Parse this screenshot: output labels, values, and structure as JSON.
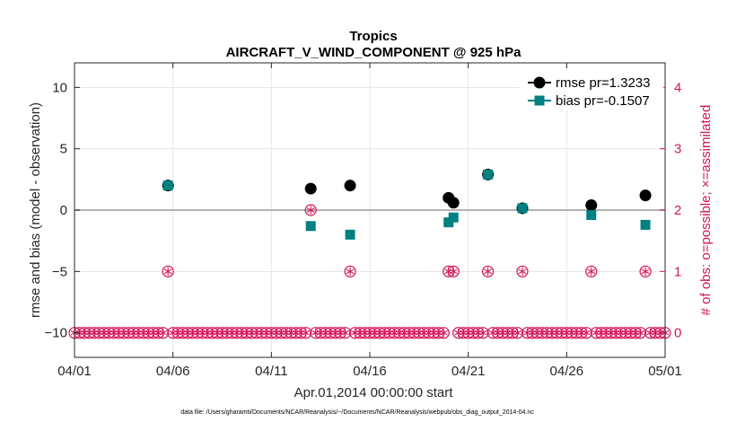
{
  "chart_data": {
    "type": "scatter",
    "title": "Tropics",
    "subtitle": "AIRCRAFT_V_WIND_COMPONENT @ 925 hPa",
    "xlabel": "Apr.01,2014 00:00:00 start",
    "ylabel": "rmse and bias (model - observation)",
    "ylabel_right": "# of obs: o=possible; ×=assimilated",
    "footnote": "data file: /Users/gharamti/Documents/NCAR/Reanalysis/~/Documents/NCAR/Reanalysis/webpub/obs_diag_output_2014-04.nc",
    "xlim": [
      0,
      30
    ],
    "ylim": [
      -12,
      12
    ],
    "ylim_right": [
      -0.4,
      4.4
    ],
    "x_ticks": [
      0,
      5,
      10,
      15,
      20,
      25,
      30
    ],
    "x_tick_labels": [
      "04/01",
      "04/06",
      "04/11",
      "04/16",
      "04/21",
      "04/26",
      "05/01"
    ],
    "y_ticks": [
      -10,
      -5,
      0,
      5,
      10
    ],
    "y_tick_labels": [
      "−10",
      "−5",
      "0",
      "5",
      "10"
    ],
    "y_ticks_right": [
      0,
      1,
      2,
      3,
      4
    ],
    "y_tick_labels_right": [
      "0",
      "1",
      "2",
      "3",
      "4"
    ],
    "grid": true,
    "legend_position": "top-right",
    "colors": {
      "rmse": "#000000",
      "bias": "#008080",
      "obs": "#d4145a",
      "zero_line": "#b3b3b3"
    },
    "series": [
      {
        "name": "rmse pr=1.3233",
        "marker": "circle",
        "x": [
          4.75,
          12.0,
          14.0,
          19.0,
          19.25,
          21.0,
          22.75,
          26.25,
          29.0
        ],
        "values": [
          2.0,
          1.75,
          2.0,
          1.0,
          0.6,
          2.9,
          0.15,
          0.4,
          1.2
        ]
      },
      {
        "name": "bias pr=-0.1507",
        "marker": "square",
        "x": [
          4.75,
          12.0,
          14.0,
          19.0,
          19.25,
          21.0,
          22.75,
          26.25,
          29.0
        ],
        "values": [
          2.0,
          -1.3,
          -2.0,
          -1.0,
          -0.6,
          2.9,
          0.15,
          -0.4,
          -1.2
        ]
      },
      {
        "name": "obs possible",
        "axis": "right",
        "marker": "circle-open",
        "x": [
          4.75,
          12.0,
          14.0,
          19.0,
          19.25,
          21.0,
          22.75,
          26.25,
          29.0
        ],
        "values": [
          1,
          2,
          1,
          1,
          1,
          1,
          1,
          1,
          1
        ],
        "baseline_value": 0,
        "baseline_step": 0.25
      },
      {
        "name": "obs assimilated",
        "axis": "right",
        "marker": "star",
        "x": [
          4.75,
          12.0,
          14.0,
          19.0,
          19.25,
          21.0,
          22.75,
          26.25,
          29.0
        ],
        "values": [
          1,
          2,
          1,
          1,
          1,
          1,
          1,
          1,
          1
        ],
        "baseline_value": 0,
        "baseline_step": 0.25
      }
    ]
  }
}
